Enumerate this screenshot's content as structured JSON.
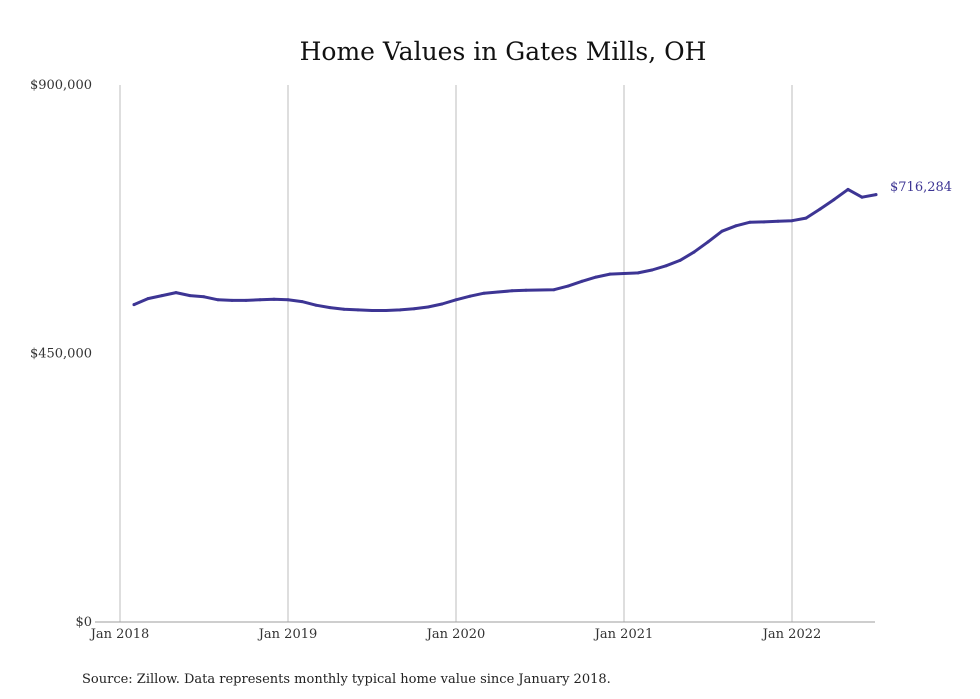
{
  "chart_data": {
    "type": "line",
    "title": "Home Values in Gates Mills, OH",
    "xlabel": "",
    "ylabel": "",
    "ylim": [
      0,
      900000
    ],
    "yticks": [
      {
        "value": 0,
        "label": "$0"
      },
      {
        "value": 450000,
        "label": "$450,000"
      },
      {
        "value": 900000,
        "label": "$900,000"
      }
    ],
    "xticks": [
      {
        "value": "2018-01",
        "label": "Jan 2018"
      },
      {
        "value": "2019-01",
        "label": "Jan 2019"
      },
      {
        "value": "2020-01",
        "label": "Jan 2020"
      },
      {
        "value": "2021-01",
        "label": "Jan 2021"
      },
      {
        "value": "2022-01",
        "label": "Jan 2022"
      }
    ],
    "grid": "vertical",
    "line_color": "#3d3594",
    "end_label": "$716,284",
    "x": [
      "2018-02",
      "2018-03",
      "2018-04",
      "2018-05",
      "2018-06",
      "2018-07",
      "2018-08",
      "2018-09",
      "2018-10",
      "2018-11",
      "2018-12",
      "2019-01",
      "2019-02",
      "2019-03",
      "2019-04",
      "2019-05",
      "2019-06",
      "2019-07",
      "2019-08",
      "2019-09",
      "2019-10",
      "2019-11",
      "2019-12",
      "2020-01",
      "2020-02",
      "2020-03",
      "2020-04",
      "2020-05",
      "2020-06",
      "2020-07",
      "2020-08",
      "2020-09",
      "2020-10",
      "2020-11",
      "2020-12",
      "2021-01",
      "2021-02",
      "2021-03",
      "2021-04",
      "2021-05",
      "2021-06",
      "2021-07",
      "2021-08",
      "2021-09",
      "2021-10",
      "2021-11",
      "2021-12",
      "2022-01",
      "2022-02",
      "2022-03",
      "2022-04",
      "2022-05",
      "2022-06",
      "2022-07"
    ],
    "values": [
      532000,
      542000,
      547000,
      552000,
      547000,
      545000,
      540000,
      539000,
      539000,
      540000,
      541000,
      540000,
      537000,
      531000,
      527000,
      524000,
      523000,
      522000,
      522000,
      523000,
      525000,
      528000,
      533000,
      540000,
      546000,
      551000,
      553000,
      555000,
      556000,
      556500,
      557000,
      563000,
      571000,
      578000,
      583000,
      584000,
      585000,
      590000,
      597000,
      606000,
      620000,
      637000,
      655000,
      664000,
      670000,
      670500,
      671500,
      672500,
      677000,
      692000,
      708000,
      725000,
      712000,
      716284
    ]
  },
  "footer": {
    "source": "Source: Zillow. Data represents monthly typical home value since January 2018."
  }
}
